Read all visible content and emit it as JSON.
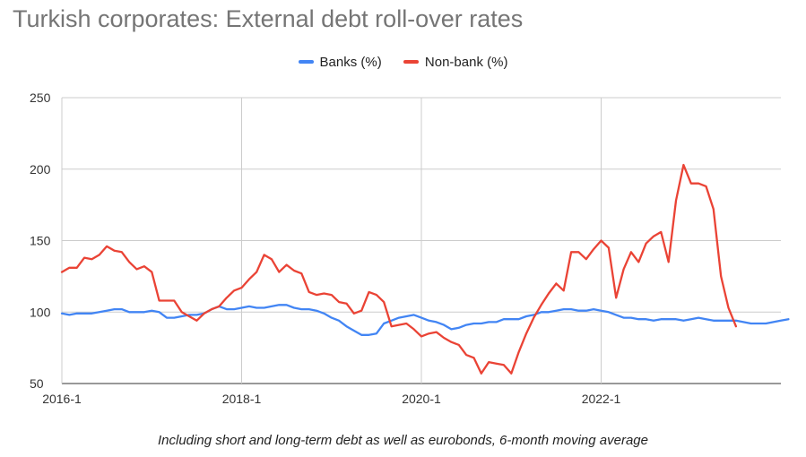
{
  "title": "Turkish corporates: External debt roll-over rates",
  "caption": "Including short and long-term debt as well as eurobonds, 6-month moving average",
  "legend": [
    {
      "label": "Banks (%)",
      "color": "#4285f4"
    },
    {
      "label": "Non-bank (%)",
      "color": "#ea4335"
    }
  ],
  "chart_data": {
    "type": "line",
    "title": "Turkish corporates: External debt roll-over rates",
    "xlabel": "",
    "ylabel": "",
    "ylim": [
      50,
      250
    ],
    "yticks": [
      50,
      100,
      150,
      200,
      250
    ],
    "xticks": [
      "2016-1",
      "2018-1",
      "2020-1",
      "2022-1"
    ],
    "x_start": "2016-1",
    "grid": true,
    "legend_position": "top",
    "series": [
      {
        "name": "Banks (%)",
        "color": "#4285f4",
        "values": [
          99,
          98,
          99,
          99,
          99,
          100,
          101,
          102,
          102,
          100,
          100,
          100,
          101,
          100,
          96,
          96,
          97,
          98,
          98,
          99,
          102,
          104,
          102,
          102,
          103,
          104,
          103,
          103,
          104,
          105,
          105,
          103,
          102,
          102,
          101,
          99,
          96,
          94,
          90,
          87,
          84,
          84,
          85,
          92,
          94,
          96,
          97,
          98,
          96,
          94,
          93,
          91,
          88,
          89,
          91,
          92,
          92,
          93,
          93,
          95,
          95,
          95,
          97,
          98,
          100,
          100,
          101,
          102,
          102,
          101,
          101,
          102,
          101,
          100,
          98,
          96,
          96,
          95,
          95,
          94,
          95,
          95,
          95,
          94,
          95,
          96,
          95,
          94,
          94,
          94,
          94,
          93,
          92,
          92,
          92,
          93,
          94,
          95
        ]
      },
      {
        "name": "Non-bank (%)",
        "color": "#ea4335",
        "values": [
          128,
          131,
          131,
          138,
          137,
          140,
          146,
          143,
          142,
          135,
          130,
          132,
          128,
          108,
          108,
          108,
          100,
          97,
          94,
          99,
          102,
          104,
          110,
          115,
          117,
          123,
          128,
          140,
          137,
          128,
          133,
          129,
          127,
          114,
          112,
          113,
          112,
          107,
          106,
          99,
          101,
          114,
          112,
          107,
          90,
          91,
          92,
          88,
          83,
          85,
          86,
          82,
          79,
          77,
          70,
          68,
          57,
          65,
          64,
          63,
          57,
          72,
          85,
          96,
          105,
          113,
          120,
          115,
          142,
          142,
          137,
          144,
          150,
          145,
          110,
          130,
          142,
          135,
          148,
          153,
          156,
          135,
          178,
          203,
          190,
          190,
          188,
          172,
          125,
          103,
          90
        ]
      }
    ]
  }
}
